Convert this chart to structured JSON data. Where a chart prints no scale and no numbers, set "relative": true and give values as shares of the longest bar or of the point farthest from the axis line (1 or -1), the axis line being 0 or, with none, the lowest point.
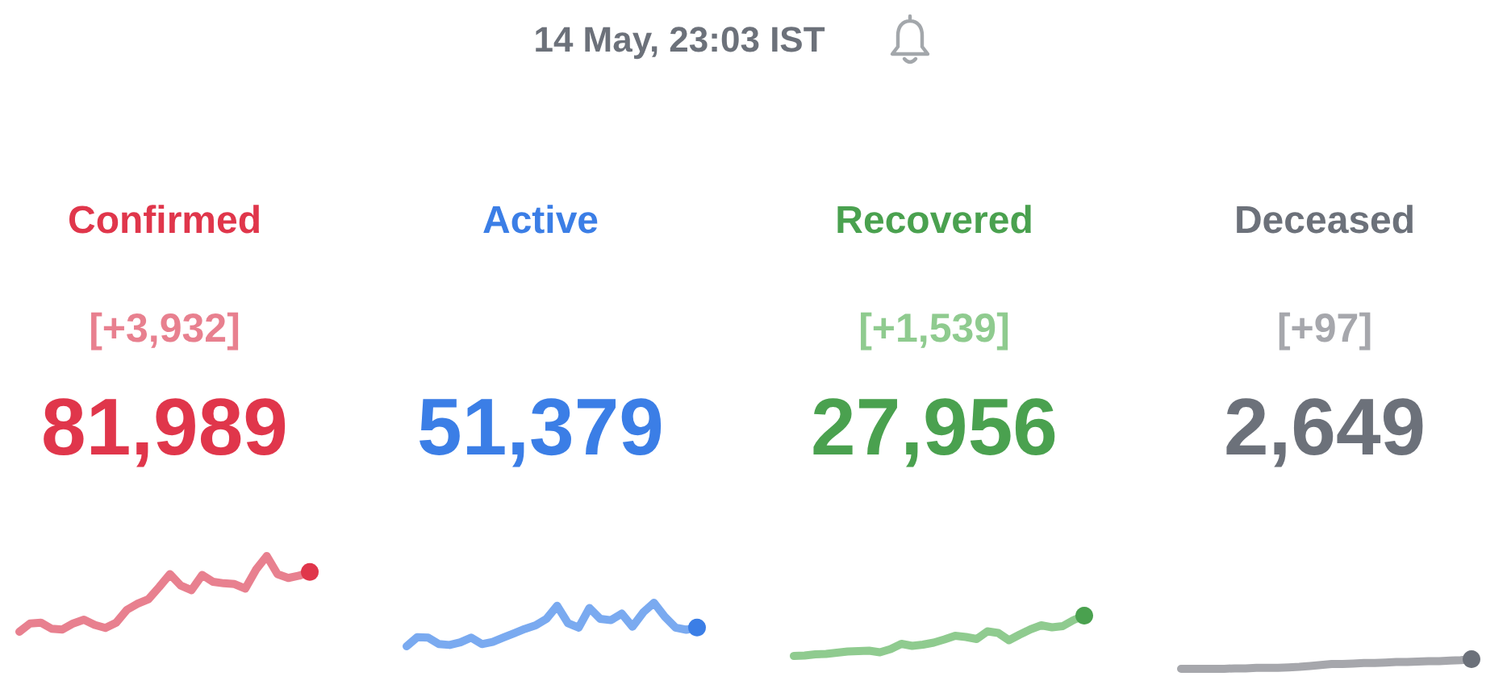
{
  "chart_data": [
    {
      "type": "other",
      "title": "14 May, 23:03 IST"
    },
    {
      "type": "line",
      "title": "Confirmed",
      "annotations": [
        "[+3,932]",
        "81,989"
      ],
      "relative": true,
      "categories": [
        null,
        null,
        null,
        null,
        null,
        null,
        null,
        null,
        null,
        null,
        null,
        null,
        null,
        null,
        null,
        null,
        null,
        null,
        null,
        null,
        null,
        null,
        null,
        null,
        null,
        null,
        null,
        null
      ],
      "series": [
        {
          "color": "#e8808f",
          "values": [
            0,
            0.11,
            0.12,
            0.04,
            0.03,
            0.11,
            0.16,
            0.09,
            0.05,
            0.12,
            0.29,
            0.37,
            0.43,
            0.59,
            0.76,
            0.61,
            0.55,
            0.75,
            0.66,
            0.64,
            0.63,
            0.57,
            0.82,
            1,
            0.76,
            0.71,
            0.74,
            0.79
          ]
        },
        {
          "color": "#e0364b",
          "marker": "circle",
          "values": [
            null,
            null,
            null,
            null,
            null,
            null,
            null,
            null,
            null,
            null,
            null,
            null,
            null,
            null,
            null,
            null,
            null,
            null,
            null,
            null,
            null,
            null,
            null,
            null,
            null,
            null,
            null,
            0.79
          ]
        }
      ]
    },
    {
      "type": "line",
      "title": "Active",
      "annotations": [
        "51,379"
      ],
      "relative": true,
      "categories": [
        null,
        null,
        null,
        null,
        null,
        null,
        null,
        null,
        null,
        null,
        null,
        null,
        null,
        null,
        null,
        null,
        null,
        null,
        null,
        null,
        null,
        null,
        null,
        null,
        null,
        null,
        null,
        null
      ],
      "series": [
        {
          "color": "#7aaaf0",
          "values": [
            0,
            0.21,
            0.2,
            0.05,
            0.03,
            0.09,
            0.2,
            0.05,
            0.1,
            0.2,
            0.3,
            0.4,
            0.48,
            0.63,
            0.93,
            0.53,
            0.43,
            0.88,
            0.63,
            0.6,
            0.75,
            0.45,
            0.78,
            1,
            0.68,
            0.43,
            0.38,
            0.43
          ]
        },
        {
          "color": "#3b7ee6",
          "marker": "circle",
          "values": [
            null,
            null,
            null,
            null,
            null,
            null,
            null,
            null,
            null,
            null,
            null,
            null,
            null,
            null,
            null,
            null,
            null,
            null,
            null,
            null,
            null,
            null,
            null,
            null,
            null,
            null,
            null,
            0.43
          ]
        }
      ]
    },
    {
      "type": "line",
      "title": "Recovered",
      "annotations": [
        "[+1,539]",
        "27,956"
      ],
      "relative": true,
      "categories": [
        null,
        null,
        null,
        null,
        null,
        null,
        null,
        null,
        null,
        null,
        null,
        null,
        null,
        null,
        null,
        null,
        null,
        null,
        null,
        null,
        null,
        null,
        null,
        null,
        null,
        null,
        null,
        null
      ],
      "series": [
        {
          "color": "#8fcb8f",
          "values": [
            0,
            0.01,
            0.04,
            0.05,
            0.08,
            0.11,
            0.12,
            0.13,
            0.09,
            0.17,
            0.3,
            0.25,
            0.28,
            0.33,
            0.41,
            0.5,
            0.47,
            0.42,
            0.61,
            0.57,
            0.39,
            0.53,
            0.66,
            0.76,
            0.71,
            0.74,
            0.89,
            1
          ]
        },
        {
          "color": "#4aa14f",
          "marker": "circle",
          "values": [
            null,
            null,
            null,
            null,
            null,
            null,
            null,
            null,
            null,
            null,
            null,
            null,
            null,
            null,
            null,
            null,
            null,
            null,
            null,
            null,
            null,
            null,
            null,
            null,
            null,
            null,
            null,
            1
          ]
        }
      ]
    },
    {
      "type": "line",
      "title": "Deceased",
      "annotations": [
        "[+97]",
        "2,649"
      ],
      "relative": true,
      "categories": [
        null,
        null,
        null,
        null,
        null,
        null,
        null,
        null,
        null,
        null,
        null,
        null,
        null,
        null,
        null,
        null,
        null,
        null,
        null,
        null,
        null,
        null,
        null,
        null,
        null,
        null,
        null,
        null
      ],
      "series": [
        {
          "color": "#a6a7ac",
          "values": [
            0,
            0,
            0,
            0,
            0,
            0.05,
            0.05,
            0.1,
            0.1,
            0.1,
            0.15,
            0.2,
            0.3,
            0.4,
            0.5,
            0.5,
            0.55,
            0.6,
            0.6,
            0.65,
            0.7,
            0.7,
            0.75,
            0.8,
            0.8,
            0.85,
            0.9,
            1
          ]
        },
        {
          "color": "#6c717a",
          "marker": "circle",
          "values": [
            null,
            null,
            null,
            null,
            null,
            null,
            null,
            null,
            null,
            null,
            null,
            null,
            null,
            null,
            null,
            null,
            null,
            null,
            null,
            null,
            null,
            null,
            null,
            null,
            null,
            null,
            null,
            1
          ]
        }
      ]
    }
  ]
}
